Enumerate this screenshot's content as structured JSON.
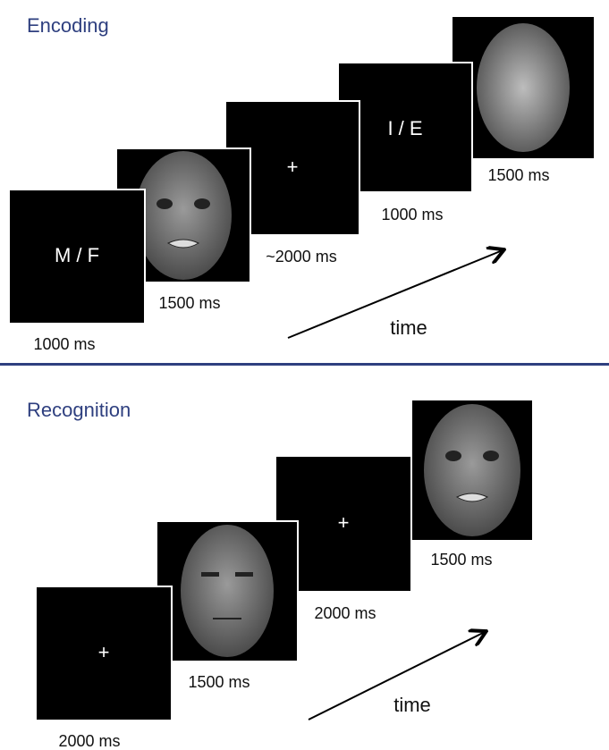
{
  "encoding": {
    "title": "Encoding",
    "frames": [
      {
        "text": "M / F",
        "duration": "1000 ms"
      },
      {
        "duration": "1500 ms"
      },
      {
        "text": "+",
        "duration": "~2000 ms"
      },
      {
        "text": "I / E",
        "duration": "1000 ms"
      },
      {
        "duration": "1500 ms"
      }
    ],
    "time_label": "time"
  },
  "recognition": {
    "title": "Recognition",
    "frames": [
      {
        "text": "+",
        "duration": "2000 ms"
      },
      {
        "duration": "1500 ms"
      },
      {
        "text": "+",
        "duration": "2000 ms"
      },
      {
        "duration": "1500 ms"
      }
    ],
    "time_label": "time"
  }
}
